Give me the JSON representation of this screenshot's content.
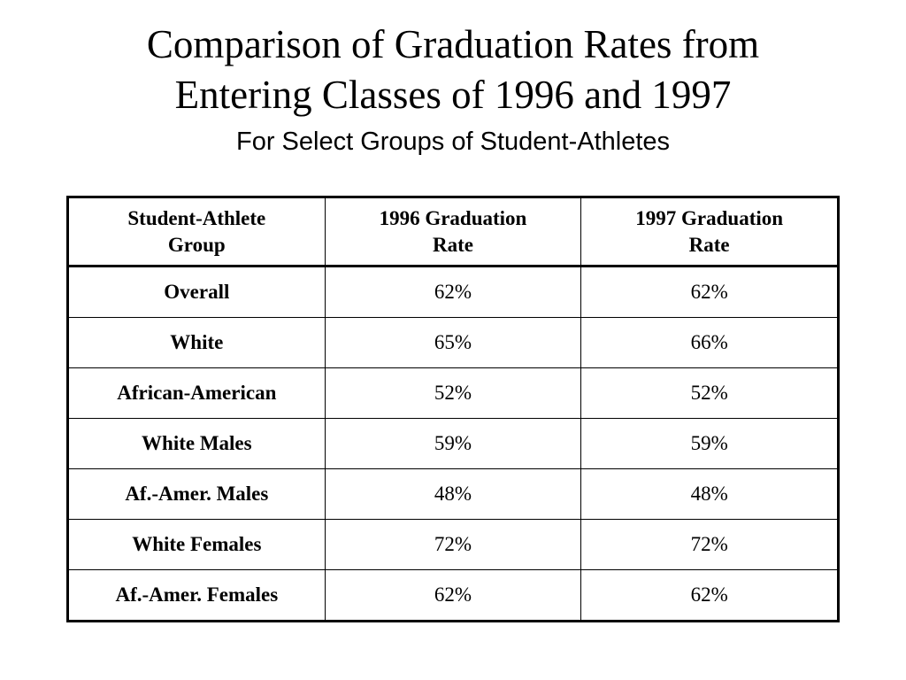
{
  "title_line1": "Comparison of Graduation Rates from",
  "title_line2": "Entering Classes of 1996 and 1997",
  "subtitle": "For Select Groups of Student-Athletes",
  "table": {
    "headers": [
      [
        "Student-Athlete",
        "Group"
      ],
      [
        "1996 Graduation",
        "Rate"
      ],
      [
        "1997 Graduation",
        "Rate"
      ]
    ],
    "rows": [
      {
        "group": "Overall",
        "rate_1996": "62%",
        "rate_1997": "62%"
      },
      {
        "group": "White",
        "rate_1996": "65%",
        "rate_1997": "66%"
      },
      {
        "group": "African-American",
        "rate_1996": "52%",
        "rate_1997": "52%"
      },
      {
        "group": "White Males",
        "rate_1996": "59%",
        "rate_1997": "59%"
      },
      {
        "group": "Af.-Amer. Males",
        "rate_1996": "48%",
        "rate_1997": "48%"
      },
      {
        "group": "White Females",
        "rate_1996": "72%",
        "rate_1997": "72%"
      },
      {
        "group": "Af.-Amer. Females",
        "rate_1996": "62%",
        "rate_1997": "62%"
      }
    ]
  }
}
